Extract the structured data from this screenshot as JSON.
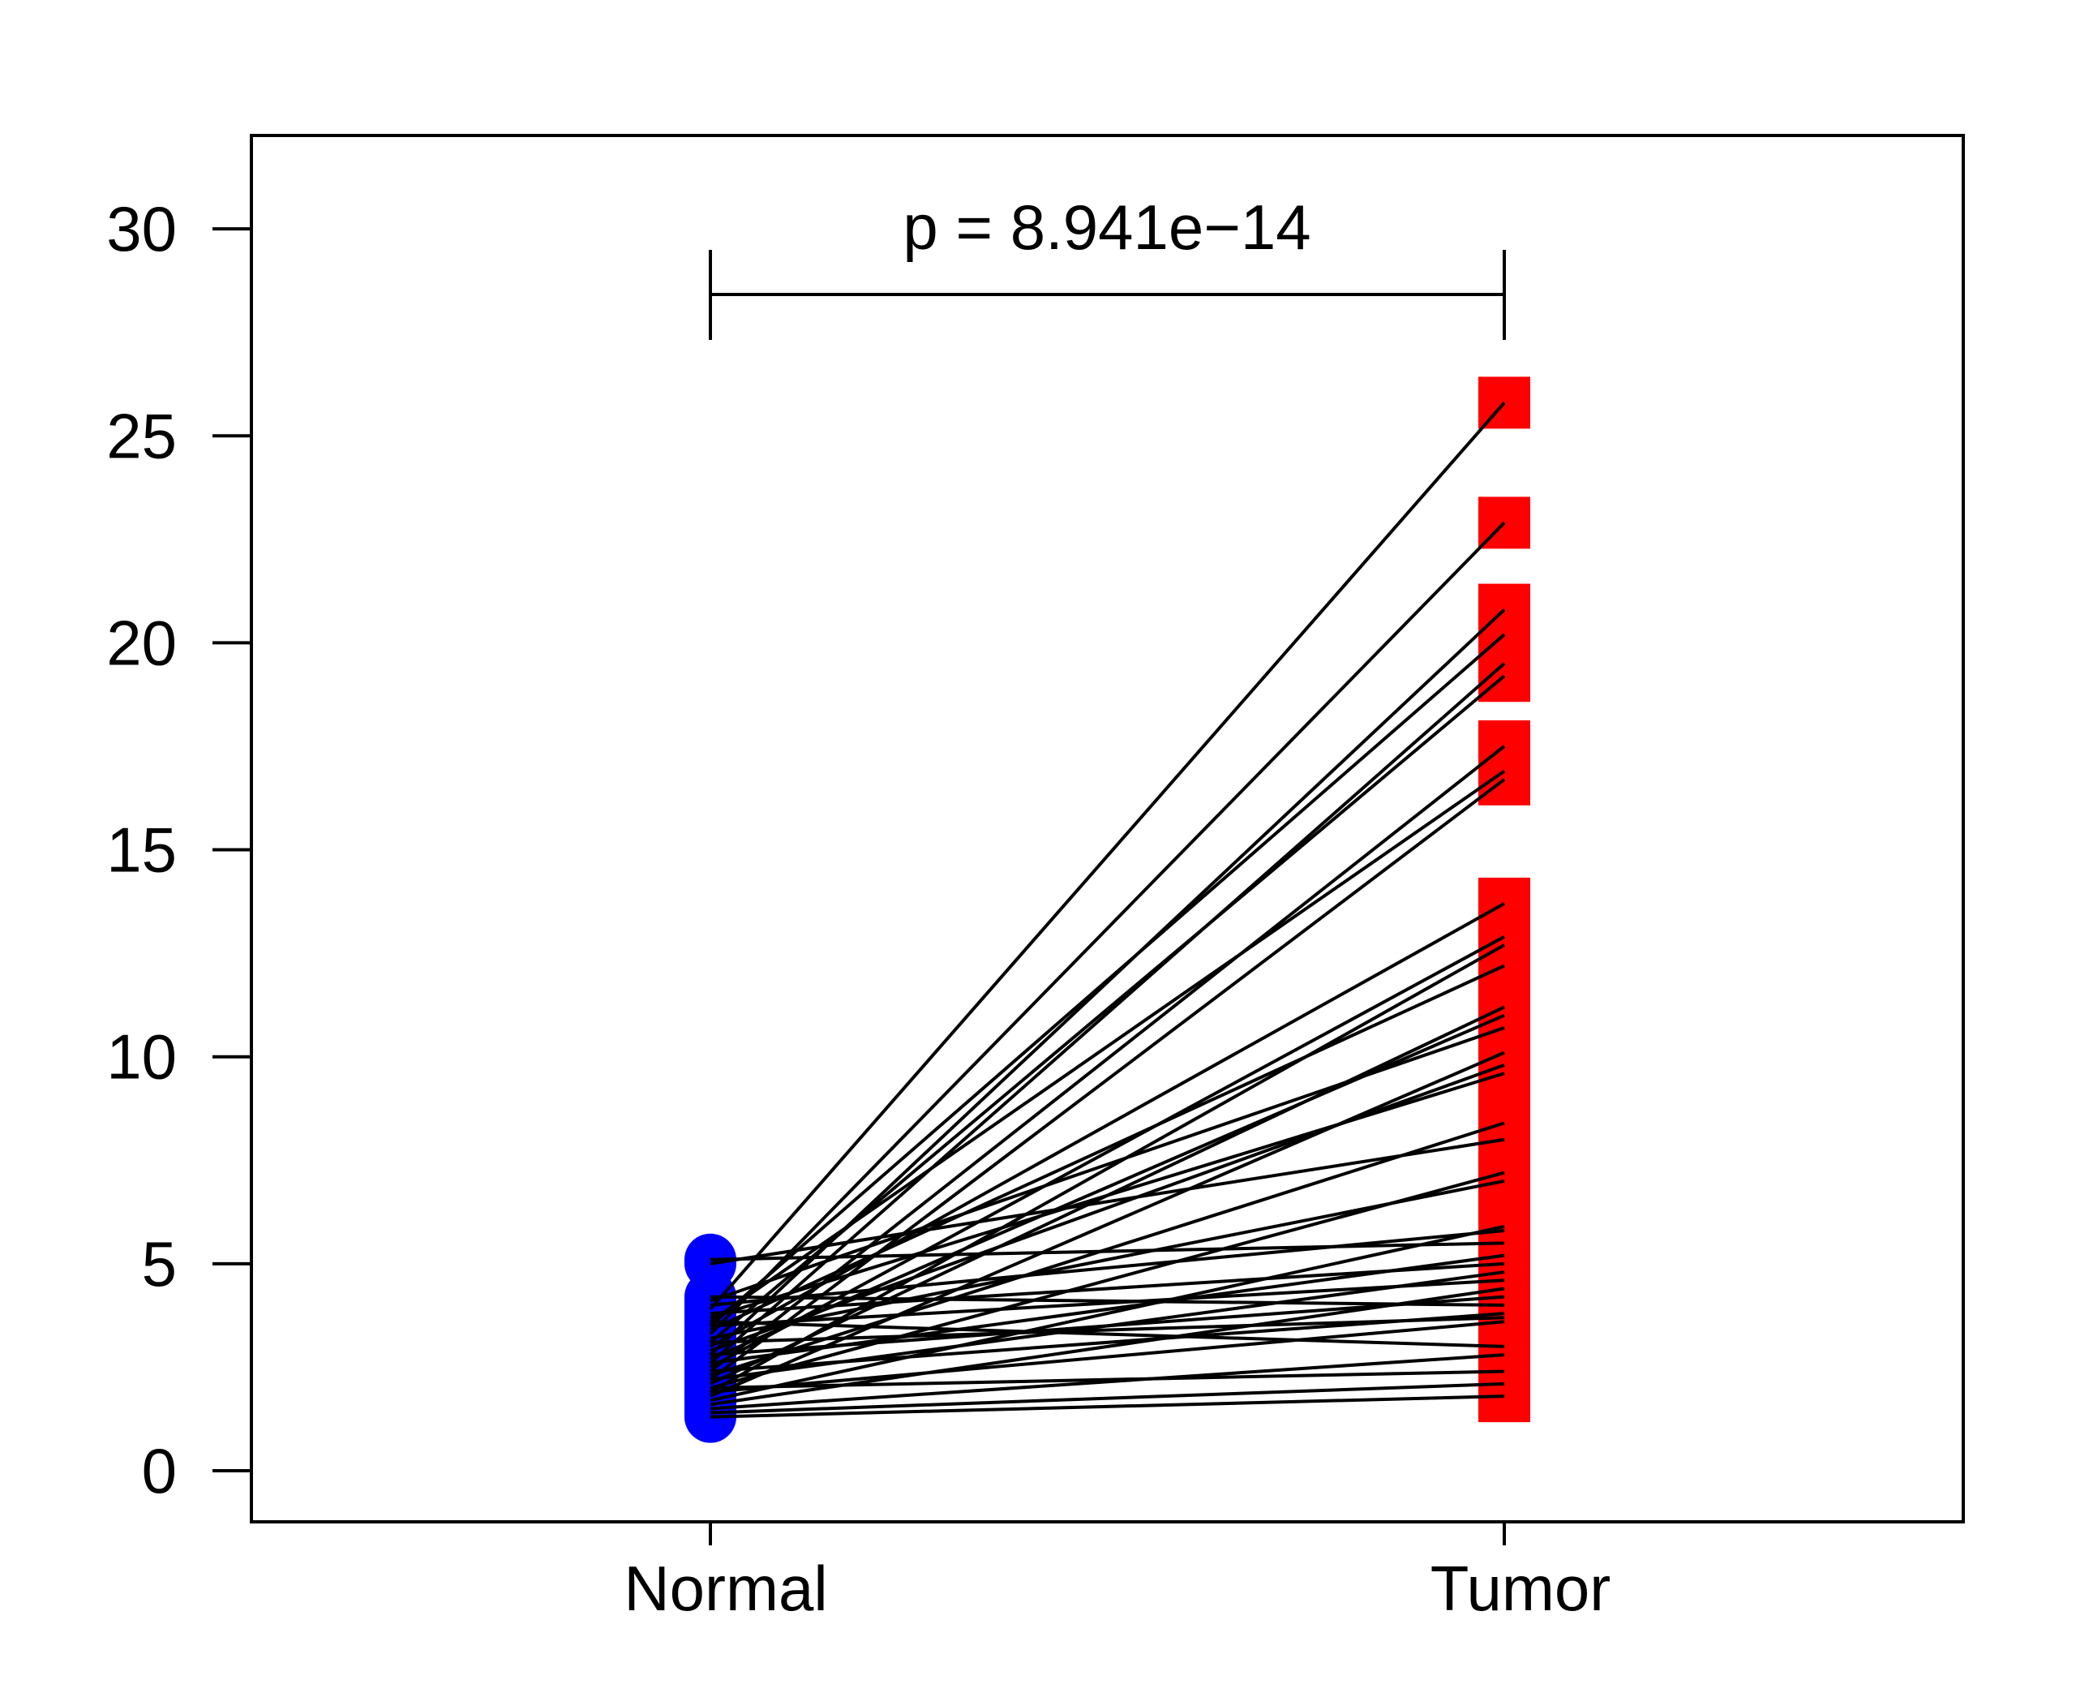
{
  "chart_data": {
    "type": "paired-line",
    "title": "",
    "xlabel": "",
    "ylabel": "",
    "categories": [
      "Normal",
      "Tumor"
    ],
    "ylim": [
      0,
      31
    ],
    "yticks": [
      0,
      5,
      10,
      15,
      20,
      25,
      30
    ],
    "grid": false,
    "annotation": "p = 8.941e−14",
    "colors": {
      "Normal": "#0000ff",
      "Tumor": "#ff0000",
      "lines": "#000000"
    },
    "pairs": [
      [
        3.9,
        25.8
      ],
      [
        3.3,
        22.9
      ],
      [
        2.8,
        20.8
      ],
      [
        3.5,
        20.2
      ],
      [
        2.6,
        19.5
      ],
      [
        3.1,
        19.2
      ],
      [
        2.4,
        17.5
      ],
      [
        3.6,
        16.9
      ],
      [
        2.2,
        16.7
      ],
      [
        3.0,
        13.7
      ],
      [
        2.5,
        12.9
      ],
      [
        1.9,
        12.7
      ],
      [
        3.4,
        12.2
      ],
      [
        2.1,
        11.2
      ],
      [
        2.7,
        11.0
      ],
      [
        4.1,
        10.7
      ],
      [
        1.8,
        10.1
      ],
      [
        2.9,
        9.8
      ],
      [
        3.7,
        9.6
      ],
      [
        2.3,
        8.4
      ],
      [
        5.0,
        8.0
      ],
      [
        2.0,
        7.2
      ],
      [
        3.2,
        7.0
      ],
      [
        1.7,
        5.9
      ],
      [
        4.0,
        5.8
      ],
      [
        5.1,
        5.5
      ],
      [
        2.6,
        5.2
      ],
      [
        3.8,
        5.0
      ],
      [
        2.2,
        4.8
      ],
      [
        3.5,
        4.6
      ],
      [
        1.6,
        4.4
      ],
      [
        2.8,
        4.2
      ],
      [
        4.2,
        4.0
      ],
      [
        2.4,
        3.8
      ],
      [
        3.1,
        3.7
      ],
      [
        1.9,
        3.6
      ],
      [
        3.6,
        3.0
      ],
      [
        1.5,
        2.8
      ],
      [
        2.0,
        2.4
      ],
      [
        1.4,
        2.1
      ],
      [
        1.3,
        1.8
      ]
    ]
  }
}
